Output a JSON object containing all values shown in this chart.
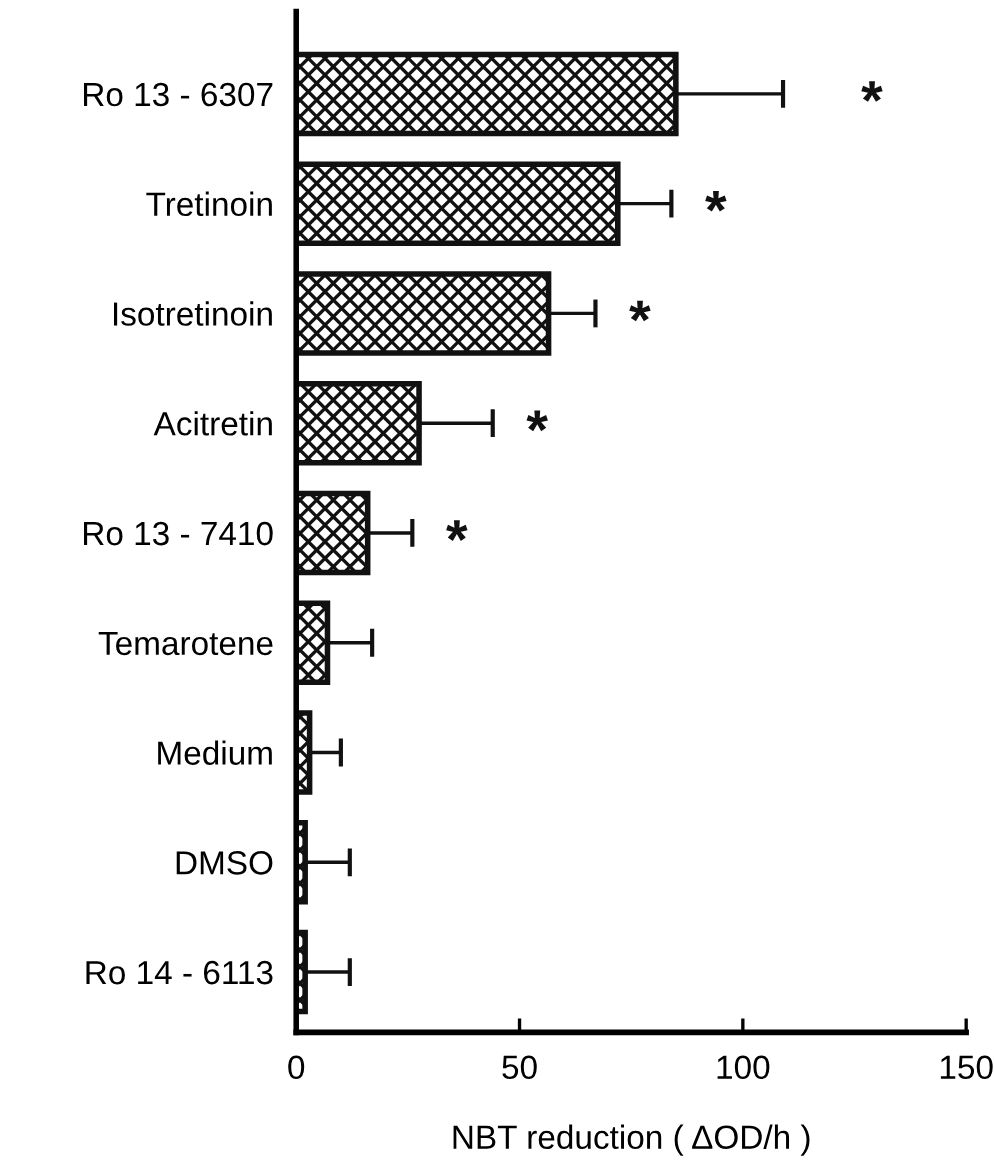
{
  "chart_data": {
    "type": "bar",
    "orientation": "horizontal",
    "categories": [
      "Ro 13 - 6307",
      "Tretinoin",
      "Isotretinoin",
      "Acitretin",
      "Ro 13 - 7410",
      "Temarotene",
      "Medium",
      "DMSO",
      "Ro 14 - 6113"
    ],
    "values": [
      85,
      72,
      56.5,
      27.5,
      16,
      7,
      3,
      2,
      2
    ],
    "errors": [
      [
        85,
        109
      ],
      [
        72,
        84
      ],
      [
        56.5,
        67
      ],
      [
        27.5,
        44
      ],
      [
        16,
        26
      ],
      [
        7,
        17
      ],
      [
        3,
        10
      ],
      [
        2,
        12
      ],
      [
        2,
        12
      ]
    ],
    "color": "#111111",
    "xlabel": "NBT reduction ( ΔOD/h )",
    "xlim": [
      0,
      150
    ],
    "xticks": [
      0,
      50,
      100,
      150
    ],
    "annotations": [
      "*",
      "*",
      "*",
      "*",
      "*"
    ],
    "grid": false,
    "legend": false
  }
}
